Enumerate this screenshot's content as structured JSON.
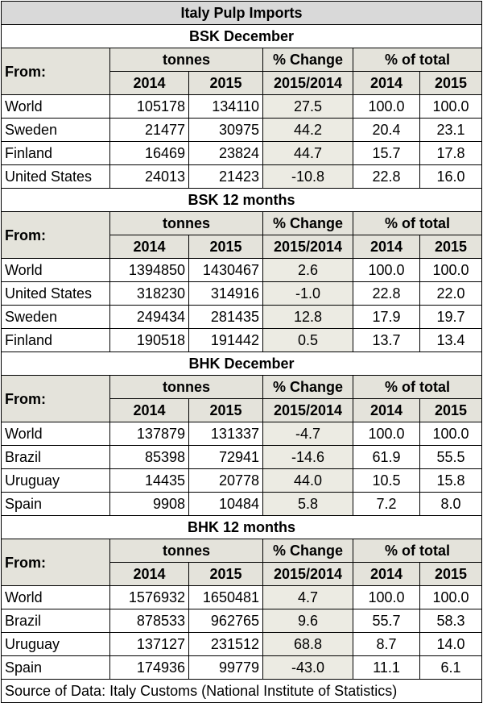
{
  "title": "Italy Pulp Imports",
  "header": {
    "from": "From:",
    "tonnes": "tonnes",
    "pct_change": "% Change",
    "pct_total": "% of total",
    "y2014": "2014",
    "y2015": "2015",
    "period": "2015/2014"
  },
  "sections": [
    {
      "title": "BSK December",
      "rows": [
        {
          "country": "World",
          "t2014": "105178",
          "t2015": "134110",
          "change": "27.5",
          "p2014": "100.0",
          "p2015": "100.0"
        },
        {
          "country": "Sweden",
          "t2014": "21477",
          "t2015": "30975",
          "change": "44.2",
          "p2014": "20.4",
          "p2015": "23.1"
        },
        {
          "country": "Finland",
          "t2014": "16469",
          "t2015": "23824",
          "change": "44.7",
          "p2014": "15.7",
          "p2015": "17.8"
        },
        {
          "country": "United States",
          "t2014": "24013",
          "t2015": "21423",
          "change": "-10.8",
          "p2014": "22.8",
          "p2015": "16.0"
        }
      ]
    },
    {
      "title": "BSK 12 months",
      "rows": [
        {
          "country": "World",
          "t2014": "1394850",
          "t2015": "1430467",
          "change": "2.6",
          "p2014": "100.0",
          "p2015": "100.0"
        },
        {
          "country": "United States",
          "t2014": "318230",
          "t2015": "314916",
          "change": "-1.0",
          "p2014": "22.8",
          "p2015": "22.0"
        },
        {
          "country": "Sweden",
          "t2014": "249434",
          "t2015": "281435",
          "change": "12.8",
          "p2014": "17.9",
          "p2015": "19.7"
        },
        {
          "country": "Finland",
          "t2014": "190518",
          "t2015": "191442",
          "change": "0.5",
          "p2014": "13.7",
          "p2015": "13.4"
        }
      ]
    },
    {
      "title": "BHK December",
      "rows": [
        {
          "country": "World",
          "t2014": "137879",
          "t2015": "131337",
          "change": "-4.7",
          "p2014": "100.0",
          "p2015": "100.0"
        },
        {
          "country": "Brazil",
          "t2014": "85398",
          "t2015": "72941",
          "change": "-14.6",
          "p2014": "61.9",
          "p2015": "55.5"
        },
        {
          "country": "Uruguay",
          "t2014": "14435",
          "t2015": "20778",
          "change": "44.0",
          "p2014": "10.5",
          "p2015": "15.8"
        },
        {
          "country": "Spain",
          "t2014": "9908",
          "t2015": "10484",
          "change": "5.8",
          "p2014": "7.2",
          "p2015": "8.0"
        }
      ]
    },
    {
      "title": "BHK 12 months",
      "rows": [
        {
          "country": "World",
          "t2014": "1576932",
          "t2015": "1650481",
          "change": "4.7",
          "p2014": "100.0",
          "p2015": "100.0"
        },
        {
          "country": "Brazil",
          "t2014": "878533",
          "t2015": "962765",
          "change": "9.6",
          "p2014": "55.7",
          "p2015": "58.3"
        },
        {
          "country": "Uruguay",
          "t2014": "137127",
          "t2015": "231512",
          "change": "68.8",
          "p2014": "8.7",
          "p2015": "14.0"
        },
        {
          "country": "Spain",
          "t2014": "174936",
          "t2015": "99779",
          "change": "-43.0",
          "p2014": "11.1",
          "p2015": "6.1"
        }
      ]
    }
  ],
  "source": "Source of Data: Italy Customs (National Institute of Statistics)"
}
